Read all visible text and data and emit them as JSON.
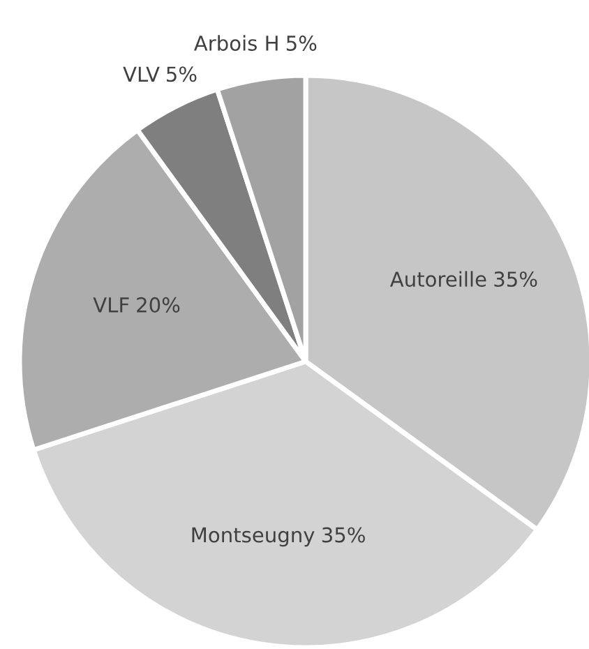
{
  "chart_data": {
    "type": "pie",
    "categories": [
      "Autoreille",
      "Montseugny",
      "VLF",
      "VLV",
      "Arbois H"
    ],
    "values": [
      35,
      35,
      20,
      5,
      5
    ],
    "value_labels": [
      "35%",
      "35%",
      "20%",
      "5%",
      "5%"
    ],
    "colors": [
      "#c6c6c6",
      "#d3d3d3",
      "#adadad",
      "#7f7f7f",
      "#a2a2a2"
    ],
    "legend": false
  }
}
